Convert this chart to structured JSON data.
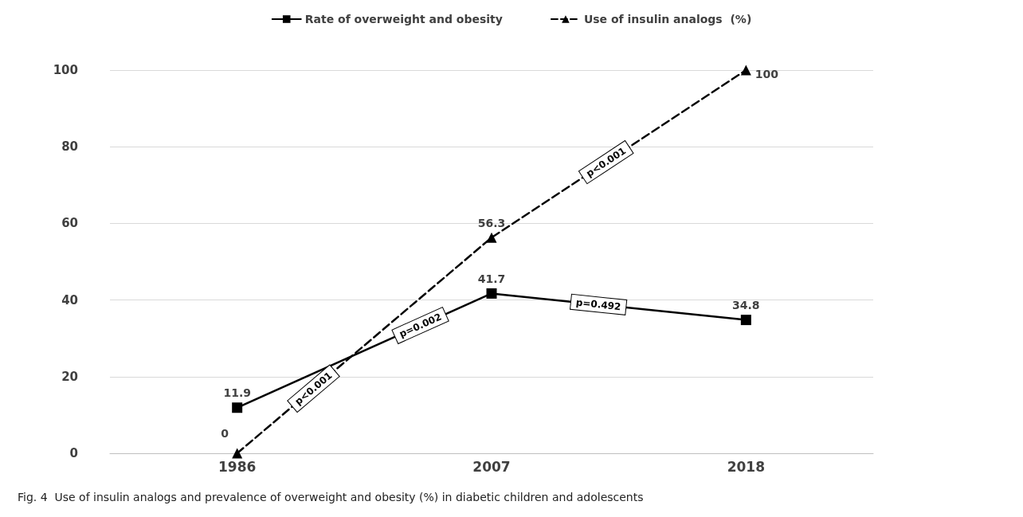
{
  "chart_data": {
    "type": "line",
    "categories": [
      "1986",
      "2007",
      "2018"
    ],
    "series": [
      {
        "name": "Rate of overweight and obesity",
        "color": "#000000",
        "values": [
          11.9,
          41.7,
          34.8
        ],
        "marker": "square",
        "line_style": "solid"
      },
      {
        "name": "Use of insulin analogs  (%)",
        "color": "#000000",
        "values": [
          0,
          56.3,
          100
        ],
        "marker": "triangle",
        "line_style": "dashed"
      }
    ],
    "ylim": [
      0,
      100
    ],
    "yticks": [
      0,
      20,
      40,
      60,
      80,
      100
    ],
    "grid": "y",
    "legend": "top",
    "data_labels": true,
    "annotations": [
      "p<0.001",
      "p=0.002",
      "p=0.492",
      "p<0.001",
      "Fig. 4  Use of insulin analogs and prevalence of overweight and obesity (%) in diabetic children and adolescents"
    ]
  }
}
